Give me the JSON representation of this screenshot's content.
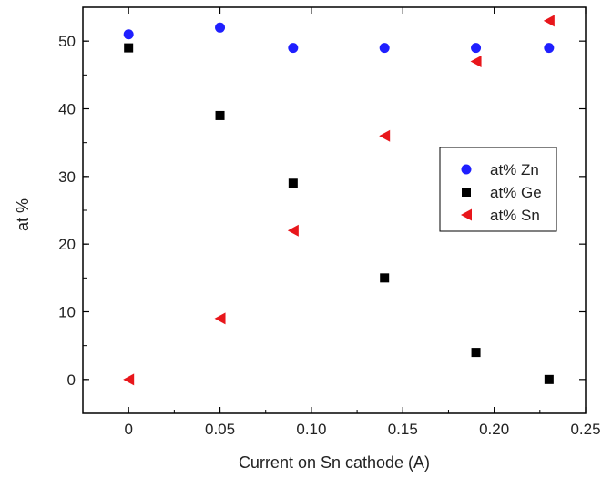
{
  "chart_data": {
    "type": "scatter",
    "title": "",
    "xlabel": "Current on Sn cathode (A)",
    "ylabel": "at %",
    "xlim": [
      -0.025,
      0.25
    ],
    "ylim": [
      -5,
      55
    ],
    "xticks": [
      0,
      0.05,
      0.1,
      0.15,
      0.2,
      0.25
    ],
    "xtick_labels": [
      "0",
      "0.05",
      "0.10",
      "0.15",
      "0.20",
      "0.25"
    ],
    "yticks": [
      0,
      10,
      20,
      30,
      40,
      50
    ],
    "ytick_labels": [
      "0",
      "10",
      "20",
      "30",
      "40",
      "50"
    ],
    "grid": false,
    "legend_position": "center-right",
    "x": [
      0,
      0.05,
      0.09,
      0.14,
      0.19,
      0.23
    ],
    "series": [
      {
        "name": "at% Zn",
        "marker": "circle",
        "color": "#1f1fff",
        "values": [
          51,
          52,
          49,
          49,
          49,
          49
        ]
      },
      {
        "name": "at% Ge",
        "marker": "square",
        "color": "#000000",
        "values": [
          49,
          39,
          29,
          15,
          4,
          0
        ]
      },
      {
        "name": "at% Sn",
        "marker": "triangle-left",
        "color": "#e8161b",
        "values": [
          0,
          9,
          22,
          36,
          47,
          53
        ]
      }
    ]
  }
}
